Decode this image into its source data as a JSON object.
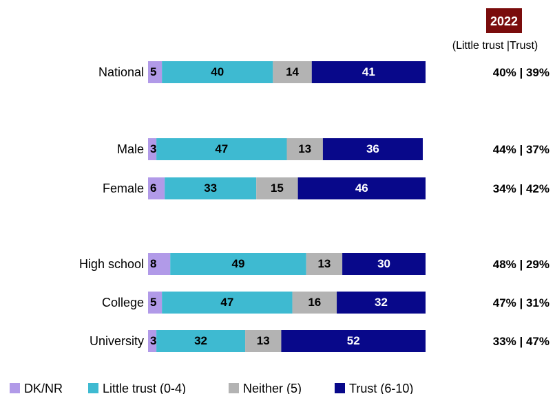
{
  "chart_data": {
    "type": "bar",
    "orientation": "horizontal",
    "stacked": true,
    "categories": [
      "National",
      "Male",
      "Female",
      "High school",
      "College",
      "University"
    ],
    "series": [
      {
        "name": "DK/NR",
        "color": "#b19ae8",
        "label_color": "#000000",
        "values": [
          5,
          3,
          6,
          8,
          5,
          3
        ]
      },
      {
        "name": "Little trust (0-4)",
        "color": "#3ebad1",
        "label_color": "#000000",
        "values": [
          40,
          47,
          33,
          49,
          47,
          32
        ]
      },
      {
        "name": "Neither (5)",
        "color": "#b3b3b3",
        "label_color": "#000000",
        "values": [
          14,
          13,
          15,
          13,
          16,
          13
        ]
      },
      {
        "name": "Trust (6-10)",
        "color": "#08088a",
        "label_color": "#ffffff",
        "values": [
          41,
          36,
          46,
          30,
          32,
          52
        ]
      }
    ],
    "xlim": [
      0,
      100
    ],
    "grid": false,
    "legend": "bottom",
    "year_badge": {
      "label": "2022",
      "color": "#7a0c0c"
    },
    "summary_header": "(Little trust |Trust)",
    "summary": [
      "40% | 39%",
      "44% | 37%",
      "34% | 42%",
      "48% | 29%",
      "47% | 31%",
      "33% | 47%"
    ]
  }
}
